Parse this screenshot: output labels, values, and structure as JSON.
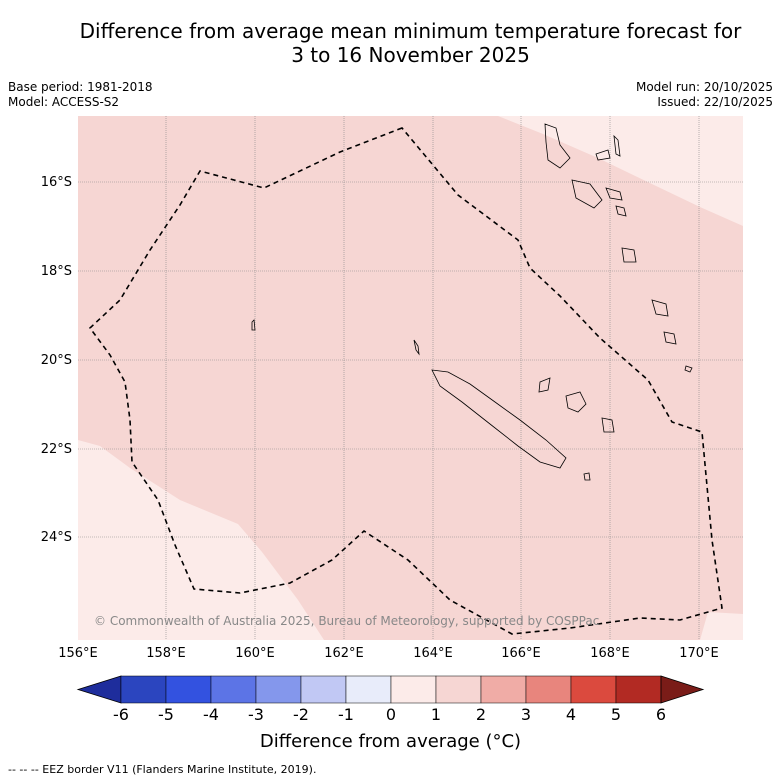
{
  "title_line1": "Difference from average mean minimum temperature forecast for",
  "title_line2": "3 to 16 November 2025",
  "meta_left": {
    "base_period": "Base period: 1981-2018",
    "model": "Model: ACCESS-S2"
  },
  "meta_right": {
    "model_run": "Model run: 20/10/2025",
    "issued": "Issued: 22/10/2025"
  },
  "map": {
    "copyright": "© Commonwealth of Australia 2025, Bureau of Meteorology, supported by COSPPac",
    "lat_labels": [
      "16°S",
      "18°S",
      "20°S",
      "22°S",
      "24°S"
    ],
    "lon_labels": [
      "156°E",
      "158°E",
      "160°E",
      "162°E",
      "164°E",
      "166°E",
      "168°E",
      "170°E"
    ],
    "fill_main": "#f6d6d3",
    "fill_light": "#fcebe9"
  },
  "colorbar": {
    "ticks": [
      "-6",
      "-5",
      "-4",
      "-3",
      "-2",
      "-1",
      "0",
      "1",
      "2",
      "3",
      "4",
      "5",
      "6"
    ],
    "colors": [
      "#1e2d9c",
      "#2b45bf",
      "#3352e0",
      "#5c74e6",
      "#8497ec",
      "#c1c8f4",
      "#e8ecfa",
      "#fcebe9",
      "#f6d6d3",
      "#f0aca6",
      "#e8857d",
      "#db4a3e",
      "#b22a23",
      "#7a1c18"
    ],
    "label": "Difference from average (°C)"
  },
  "footnote": "-- -- -- EEZ border V11 (Flanders Marine Institute, 2019)."
}
